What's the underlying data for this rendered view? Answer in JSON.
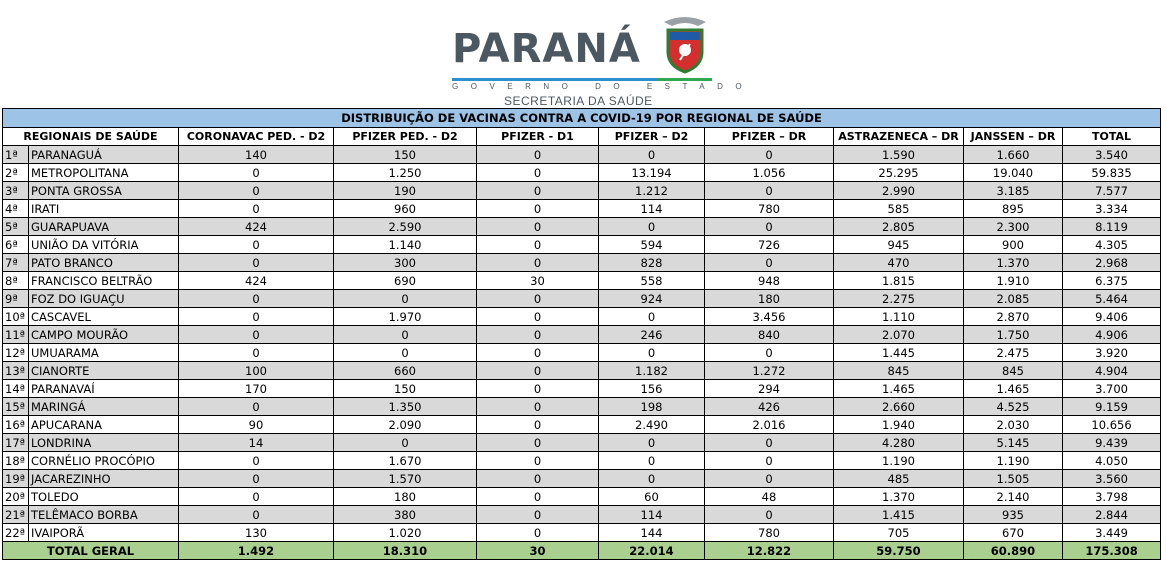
{
  "logo": {
    "word": "PARANÁ",
    "subtitle": "GOVERNO DO ESTADO",
    "department": "SECRETARIA DA SAÚDE"
  },
  "table": {
    "title": "DISTRIBUIÇÃO DE VACINAS CONTRA A COVID-19 POR REGIONAL DE SAÚDE",
    "headers": [
      "REGIONAIS DE SAÚDE",
      "CORONAVAC PED. - D2",
      "PFIZER PED. - D2",
      "PFIZER  - D1",
      "PFIZER – D2",
      "PFIZER – DR",
      "ASTRAZENECA – DR",
      "JANSSEN – DR",
      "TOTAL"
    ],
    "rows": [
      {
        "rank": "1ª",
        "name": "PARANAGUÁ",
        "values": [
          "140",
          "150",
          "0",
          "0",
          "0",
          "1.590",
          "1.660",
          "3.540"
        ]
      },
      {
        "rank": "2ª",
        "name": "METROPOLITANA",
        "values": [
          "0",
          "1.250",
          "0",
          "13.194",
          "1.056",
          "25.295",
          "19.040",
          "59.835"
        ]
      },
      {
        "rank": "3ª",
        "name": "PONTA GROSSA",
        "values": [
          "0",
          "190",
          "0",
          "1.212",
          "0",
          "2.990",
          "3.185",
          "7.577"
        ]
      },
      {
        "rank": "4ª",
        "name": "IRATI",
        "values": [
          "0",
          "960",
          "0",
          "114",
          "780",
          "585",
          "895",
          "3.334"
        ]
      },
      {
        "rank": "5ª",
        "name": "GUARAPUAVA",
        "values": [
          "424",
          "2.590",
          "0",
          "0",
          "0",
          "2.805",
          "2.300",
          "8.119"
        ]
      },
      {
        "rank": "6ª",
        "name": "UNIÃO DA VITÓRIA",
        "values": [
          "0",
          "1.140",
          "0",
          "594",
          "726",
          "945",
          "900",
          "4.305"
        ]
      },
      {
        "rank": "7ª",
        "name": "PATO BRANCO",
        "values": [
          "0",
          "300",
          "0",
          "828",
          "0",
          "470",
          "1.370",
          "2.968"
        ]
      },
      {
        "rank": "8ª",
        "name": "FRANCISCO BELTRÃO",
        "values": [
          "424",
          "690",
          "30",
          "558",
          "948",
          "1.815",
          "1.910",
          "6.375"
        ]
      },
      {
        "rank": "9ª",
        "name": "FOZ DO IGUAÇU",
        "values": [
          "0",
          "0",
          "0",
          "924",
          "180",
          "2.275",
          "2.085",
          "5.464"
        ]
      },
      {
        "rank": "10ª",
        "name": "CASCAVEL",
        "values": [
          "0",
          "1.970",
          "0",
          "0",
          "3.456",
          "1.110",
          "2.870",
          "9.406"
        ]
      },
      {
        "rank": "11ª",
        "name": "CAMPO MOURÃO",
        "values": [
          "0",
          "0",
          "0",
          "246",
          "840",
          "2.070",
          "1.750",
          "4.906"
        ]
      },
      {
        "rank": "12ª",
        "name": "UMUARAMA",
        "values": [
          "0",
          "0",
          "0",
          "0",
          "0",
          "1.445",
          "2.475",
          "3.920"
        ]
      },
      {
        "rank": "13ª",
        "name": "CIANORTE",
        "values": [
          "100",
          "660",
          "0",
          "1.182",
          "1.272",
          "845",
          "845",
          "4.904"
        ]
      },
      {
        "rank": "14ª",
        "name": "PARANAVAÍ",
        "values": [
          "170",
          "150",
          "0",
          "156",
          "294",
          "1.465",
          "1.465",
          "3.700"
        ]
      },
      {
        "rank": "15ª",
        "name": "MARINGÁ",
        "values": [
          "0",
          "1.350",
          "0",
          "198",
          "426",
          "2.660",
          "4.525",
          "9.159"
        ]
      },
      {
        "rank": "16ª",
        "name": "APUCARANA",
        "values": [
          "90",
          "2.090",
          "0",
          "2.490",
          "2.016",
          "1.940",
          "2.030",
          "10.656"
        ]
      },
      {
        "rank": "17ª",
        "name": "LONDRINA",
        "values": [
          "14",
          "0",
          "0",
          "0",
          "0",
          "4.280",
          "5.145",
          "9.439"
        ]
      },
      {
        "rank": "18ª",
        "name": "CORNÉLIO PROCÓPIO",
        "values": [
          "0",
          "1.670",
          "0",
          "0",
          "0",
          "1.190",
          "1.190",
          "4.050"
        ]
      },
      {
        "rank": "19ª",
        "name": "JACAREZINHO",
        "values": [
          "0",
          "1.570",
          "0",
          "0",
          "0",
          "485",
          "1.505",
          "3.560"
        ]
      },
      {
        "rank": "20ª",
        "name": "TOLEDO",
        "values": [
          "0",
          "180",
          "0",
          "60",
          "48",
          "1.370",
          "2.140",
          "3.798"
        ]
      },
      {
        "rank": "21ª",
        "name": "TELÊMACO BORBA",
        "values": [
          "0",
          "380",
          "0",
          "114",
          "0",
          "1.415",
          "935",
          "2.844"
        ]
      },
      {
        "rank": "22ª",
        "name": "IVAIPORÃ",
        "values": [
          "130",
          "1.020",
          "0",
          "144",
          "780",
          "705",
          "670",
          "3.449"
        ]
      }
    ],
    "total": {
      "label": "TOTAL GERAL",
      "values": [
        "1.492",
        "18.310",
        "30",
        "22.014",
        "12.822",
        "59.750",
        "60.890",
        "175.308"
      ]
    }
  }
}
